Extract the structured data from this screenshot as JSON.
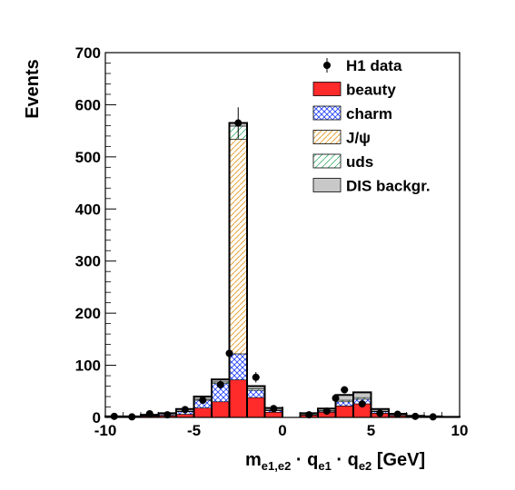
{
  "chart_data": {
    "type": "bar",
    "stacked": true,
    "xlabel": {
      "main": "m",
      "sub1": "e1,e2",
      "mid1": " · q",
      "sub2": "e1",
      "mid2": " · q",
      "sub3": "e2",
      "tail": " [GeV]"
    },
    "ylabel": "Events",
    "xlim": [
      -10,
      10
    ],
    "ylim": [
      0,
      700
    ],
    "x_ticks": [
      -10,
      -5,
      0,
      5,
      10
    ],
    "y_ticks": [
      0,
      100,
      200,
      300,
      400,
      500,
      600,
      700
    ],
    "legend_position": "top-right",
    "bin_edges": [
      -10,
      -9,
      -8,
      -7,
      -6,
      -5,
      -4,
      -3,
      -2,
      -1,
      0,
      1,
      2,
      3,
      4,
      5,
      6,
      7,
      8,
      9,
      10
    ],
    "series": [
      {
        "name": "beauty",
        "color": "#ff2a2a",
        "fill": "solid",
        "values": [
          1,
          1,
          2,
          3,
          6,
          18,
          30,
          72,
          38,
          10,
          0,
          4,
          10,
          22,
          26,
          8,
          3,
          1,
          1,
          0
        ]
      },
      {
        "name": "charm",
        "color": "#1e3cff",
        "fill": "crosshatch",
        "values": [
          0,
          0,
          1,
          2,
          5,
          15,
          35,
          50,
          14,
          3,
          0,
          1,
          2,
          8,
          9,
          3,
          1,
          0,
          0,
          0
        ]
      },
      {
        "name": "J/ψ",
        "color": "#e8a33a",
        "fill": "diagonal",
        "values": [
          0,
          0,
          0,
          0,
          0,
          0,
          0,
          412,
          0,
          0,
          0,
          0,
          0,
          0,
          0,
          0,
          0,
          0,
          0,
          0
        ]
      },
      {
        "name": "uds",
        "color": "#3cb371",
        "fill": "diagonal-light",
        "values": [
          0,
          0,
          0,
          0,
          1,
          2,
          3,
          25,
          3,
          1,
          0,
          0,
          1,
          3,
          3,
          1,
          0,
          0,
          0,
          0
        ]
      },
      {
        "name": "DIS backgr.",
        "color": "#c8c8c8",
        "fill": "solid",
        "values": [
          1,
          1,
          2,
          3,
          4,
          5,
          5,
          6,
          5,
          4,
          0,
          3,
          4,
          10,
          10,
          4,
          3,
          2,
          1,
          1
        ]
      }
    ],
    "data": {
      "name": "H1 data",
      "points": [
        {
          "x": -9.5,
          "y": 2,
          "err": 2
        },
        {
          "x": -8.5,
          "y": 1,
          "err": 2
        },
        {
          "x": -7.5,
          "y": 7,
          "err": 3
        },
        {
          "x": -6.5,
          "y": 5,
          "err": 3
        },
        {
          "x": -5.5,
          "y": 15,
          "err": 4
        },
        {
          "x": -4.5,
          "y": 33,
          "err": 6
        },
        {
          "x": -3.5,
          "y": 63,
          "err": 8
        },
        {
          "x": -3.0,
          "y": 123,
          "err": 12
        },
        {
          "x": -2.5,
          "y": 565,
          "err": 30
        },
        {
          "x": -1.5,
          "y": 77,
          "err": 10
        },
        {
          "x": -0.5,
          "y": 17,
          "err": 5
        },
        {
          "x": 1.5,
          "y": 5,
          "err": 3
        },
        {
          "x": 2.5,
          "y": 12,
          "err": 4
        },
        {
          "x": 3.0,
          "y": 37,
          "err": 6
        },
        {
          "x": 3.5,
          "y": 53,
          "err": 7
        },
        {
          "x": 4.5,
          "y": 26,
          "err": 5
        },
        {
          "x": 5.5,
          "y": 8,
          "err": 3
        },
        {
          "x": 6.5,
          "y": 6,
          "err": 3
        },
        {
          "x": 7.5,
          "y": 2,
          "err": 2
        },
        {
          "x": 8.5,
          "y": 1,
          "err": 2
        }
      ]
    }
  }
}
